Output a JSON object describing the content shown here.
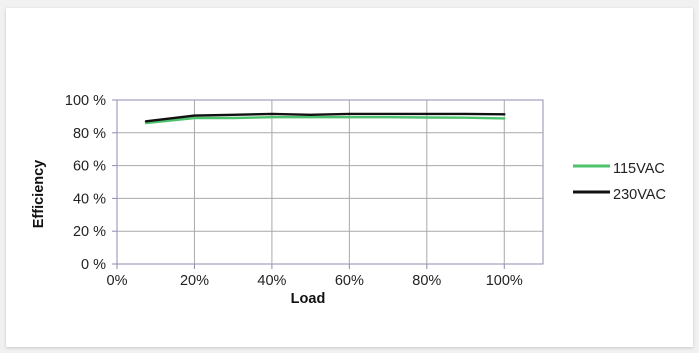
{
  "chart_data": {
    "type": "line",
    "xlabel": "Load",
    "ylabel": "Efficiency",
    "x_ticks": [
      "0%",
      "20%",
      "40%",
      "60%",
      "80%",
      "100%"
    ],
    "y_ticks": [
      "0 %",
      "20 %",
      "40 %",
      "60 %",
      "80 %",
      "100 %"
    ],
    "xlim": [
      0,
      110
    ],
    "ylim": [
      0,
      100
    ],
    "grid": true,
    "legend_position": "right",
    "series": [
      {
        "name": "115VAC",
        "color": "#4cc26d",
        "x": [
          7.5,
          20,
          30,
          40,
          50,
          60,
          70,
          80,
          90,
          100
        ],
        "y": [
          86,
          89,
          89,
          89.5,
          89.5,
          89.5,
          89.5,
          89.3,
          89.2,
          88.8
        ]
      },
      {
        "name": "230VAC",
        "color": "#111111",
        "x": [
          7.5,
          20,
          30,
          40,
          50,
          60,
          70,
          80,
          90,
          100
        ],
        "y": [
          87,
          90.5,
          91,
          91.5,
          91,
          91.5,
          91.5,
          91.5,
          91.5,
          91.3
        ]
      }
    ]
  }
}
